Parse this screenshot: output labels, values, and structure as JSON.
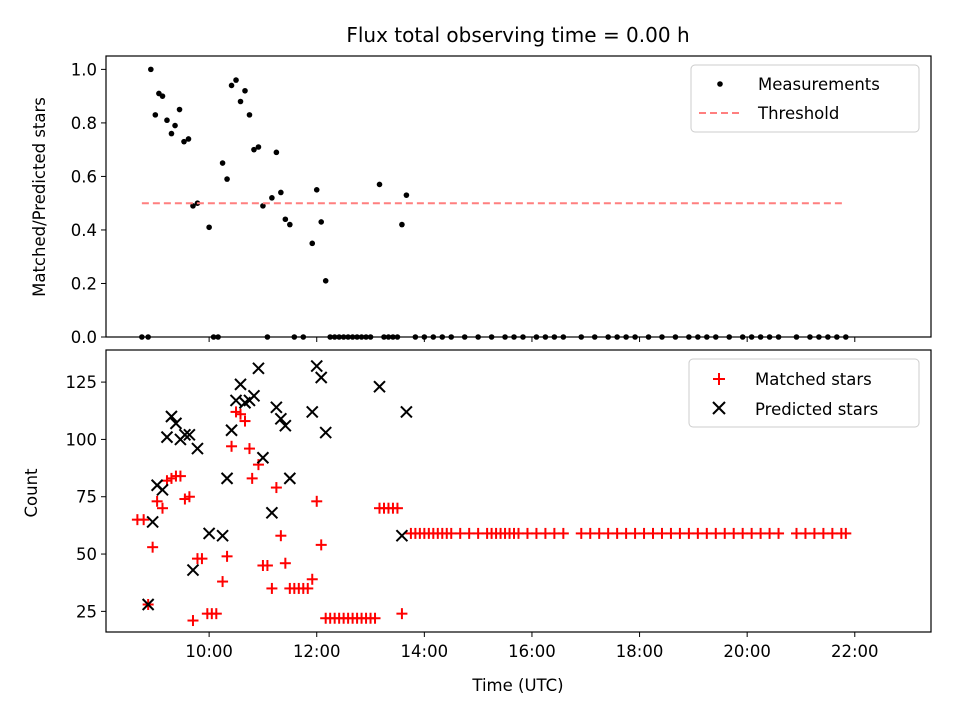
{
  "figure": {
    "title": "Flux total observing time = 0.00 h"
  },
  "chart_data": [
    {
      "type": "scatter",
      "ylabel": "Matched/Predicted stars",
      "xlabel": "",
      "xlim": [
        "08:05",
        "23:25"
      ],
      "ylim": [
        0,
        1.05
      ],
      "yticks": [
        0.0,
        0.2,
        0.4,
        0.6,
        0.8,
        1.0
      ],
      "ytick_labels": [
        "0.0",
        "0.2",
        "0.4",
        "0.6",
        "0.8",
        "1.0"
      ],
      "xticks": [
        "10:00",
        "12:00",
        "14:00",
        "16:00",
        "18:00",
        "20:00",
        "22:00"
      ],
      "show_xtick_labels": false,
      "legend_position": "top-right",
      "series": [
        {
          "name": "Measurements",
          "color": "#000000",
          "marker": "dot",
          "points": [
            [
              "08:45",
              0
            ],
            [
              "08:52",
              0
            ],
            [
              "08:55",
              1.0
            ],
            [
              "09:00",
              0.83
            ],
            [
              "09:04",
              0.91
            ],
            [
              "09:08",
              0.9
            ],
            [
              "09:13",
              0.81
            ],
            [
              "09:18",
              0.76
            ],
            [
              "09:22",
              0.79
            ],
            [
              "09:27",
              0.85
            ],
            [
              "09:32",
              0.73
            ],
            [
              "09:37",
              0.74
            ],
            [
              "09:42",
              0.49
            ],
            [
              "09:47",
              0.5
            ],
            [
              "10:00",
              0.41
            ],
            [
              "10:05",
              0
            ],
            [
              "10:10",
              0
            ],
            [
              "10:15",
              0.65
            ],
            [
              "10:20",
              0.59
            ],
            [
              "10:25",
              0.94
            ],
            [
              "10:30",
              0.96
            ],
            [
              "10:35",
              0.88
            ],
            [
              "10:40",
              0.92
            ],
            [
              "10:45",
              0.83
            ],
            [
              "10:50",
              0.7
            ],
            [
              "10:55",
              0.71
            ],
            [
              "11:00",
              0.49
            ],
            [
              "11:05",
              0
            ],
            [
              "11:10",
              0.52
            ],
            [
              "11:15",
              0.69
            ],
            [
              "11:20",
              0.54
            ],
            [
              "11:25",
              0.44
            ],
            [
              "11:30",
              0.42
            ],
            [
              "11:35",
              0
            ],
            [
              "11:45",
              0
            ],
            [
              "11:55",
              0.35
            ],
            [
              "12:00",
              0.55
            ],
            [
              "12:05",
              0.43
            ],
            [
              "12:10",
              0.21
            ],
            [
              "12:15",
              0
            ],
            [
              "12:20",
              0
            ],
            [
              "12:25",
              0
            ],
            [
              "12:30",
              0
            ],
            [
              "12:35",
              0
            ],
            [
              "12:40",
              0
            ],
            [
              "12:45",
              0
            ],
            [
              "12:50",
              0
            ],
            [
              "12:55",
              0
            ],
            [
              "13:00",
              0
            ],
            [
              "13:10",
              0.57
            ],
            [
              "13:15",
              0
            ],
            [
              "13:20",
              0
            ],
            [
              "13:25",
              0
            ],
            [
              "13:30",
              0
            ],
            [
              "13:35",
              0.42
            ],
            [
              "13:40",
              0.53
            ],
            [
              "13:50",
              0
            ],
            [
              "14:00",
              0
            ],
            [
              "14:10",
              0
            ],
            [
              "14:20",
              0
            ],
            [
              "14:30",
              0
            ],
            [
              "14:45",
              0
            ],
            [
              "15:00",
              0
            ],
            [
              "15:15",
              0
            ],
            [
              "15:30",
              0
            ],
            [
              "15:40",
              0
            ],
            [
              "15:50",
              0
            ],
            [
              "16:05",
              0
            ],
            [
              "16:15",
              0
            ],
            [
              "16:25",
              0
            ],
            [
              "16:35",
              0
            ],
            [
              "16:55",
              0
            ],
            [
              "17:10",
              0
            ],
            [
              "17:25",
              0
            ],
            [
              "17:35",
              0
            ],
            [
              "17:45",
              0
            ],
            [
              "17:55",
              0
            ],
            [
              "18:10",
              0
            ],
            [
              "18:25",
              0
            ],
            [
              "18:40",
              0
            ],
            [
              "18:55",
              0
            ],
            [
              "19:05",
              0
            ],
            [
              "19:15",
              0
            ],
            [
              "19:25",
              0
            ],
            [
              "19:40",
              0
            ],
            [
              "19:55",
              0
            ],
            [
              "20:05",
              0
            ],
            [
              "20:15",
              0
            ],
            [
              "20:25",
              0
            ],
            [
              "20:35",
              0
            ],
            [
              "20:55",
              0
            ],
            [
              "21:10",
              0
            ],
            [
              "21:20",
              0
            ],
            [
              "21:30",
              0
            ],
            [
              "21:40",
              0
            ],
            [
              "21:50",
              0
            ]
          ]
        },
        {
          "name": "Threshold",
          "color": "#ff7f7f",
          "style": "dashed-line",
          "points": [
            [
              "08:45",
              0.5
            ],
            [
              "21:50",
              0.5
            ]
          ]
        }
      ]
    },
    {
      "type": "scatter",
      "ylabel": "Count",
      "xlabel": "Time (UTC)",
      "xlim": [
        "08:05",
        "23:25"
      ],
      "ylim": [
        16,
        139
      ],
      "yticks": [
        25,
        50,
        75,
        100,
        125
      ],
      "ytick_labels": [
        "25",
        "50",
        "75",
        "100",
        "125"
      ],
      "xticks": [
        "10:00",
        "12:00",
        "14:00",
        "16:00",
        "18:00",
        "20:00",
        "22:00"
      ],
      "xtick_labels": [
        "10:00",
        "12:00",
        "14:00",
        "16:00",
        "18:00",
        "20:00",
        "22:00"
      ],
      "show_xtick_labels": true,
      "legend_position": "top-right",
      "series": [
        {
          "name": "Matched stars",
          "color": "#ff0000",
          "marker": "plus",
          "points": [
            [
              "08:40",
              65
            ],
            [
              "08:47",
              65
            ],
            [
              "08:52",
              28
            ],
            [
              "08:57",
              53
            ],
            [
              "09:02",
              73
            ],
            [
              "09:08",
              70
            ],
            [
              "09:13",
              82
            ],
            [
              "09:18",
              83
            ],
            [
              "09:23",
              84
            ],
            [
              "09:28",
              84
            ],
            [
              "09:33",
              74
            ],
            [
              "09:38",
              75
            ],
            [
              "09:42",
              21
            ],
            [
              "09:47",
              48
            ],
            [
              "09:52",
              48
            ],
            [
              "09:58",
              24
            ],
            [
              "10:03",
              24
            ],
            [
              "10:08",
              24
            ],
            [
              "10:15",
              38
            ],
            [
              "10:20",
              49
            ],
            [
              "10:25",
              97
            ],
            [
              "10:30",
              112
            ],
            [
              "10:35",
              111
            ],
            [
              "10:40",
              108
            ],
            [
              "10:45",
              96
            ],
            [
              "10:48",
              83
            ],
            [
              "10:55",
              89
            ],
            [
              "11:00",
              45
            ],
            [
              "11:05",
              45
            ],
            [
              "11:10",
              35
            ],
            [
              "11:15",
              79
            ],
            [
              "11:20",
              58
            ],
            [
              "11:25",
              46
            ],
            [
              "11:30",
              35
            ],
            [
              "11:35",
              35
            ],
            [
              "11:40",
              35
            ],
            [
              "11:45",
              35
            ],
            [
              "11:50",
              35
            ],
            [
              "11:55",
              39
            ],
            [
              "12:00",
              73
            ],
            [
              "12:05",
              54
            ],
            [
              "12:10",
              22
            ],
            [
              "12:15",
              22
            ],
            [
              "12:20",
              22
            ],
            [
              "12:25",
              22
            ],
            [
              "12:30",
              22
            ],
            [
              "12:35",
              22
            ],
            [
              "12:40",
              22
            ],
            [
              "12:45",
              22
            ],
            [
              "12:50",
              22
            ],
            [
              "12:55",
              22
            ],
            [
              "13:00",
              22
            ],
            [
              "13:05",
              22
            ],
            [
              "13:10",
              70
            ],
            [
              "13:15",
              70
            ],
            [
              "13:20",
              70
            ],
            [
              "13:25",
              70
            ],
            [
              "13:30",
              70
            ],
            [
              "13:35",
              24
            ],
            [
              "13:45",
              59
            ],
            [
              "13:50",
              59
            ],
            [
              "13:55",
              59
            ],
            [
              "14:00",
              59
            ],
            [
              "14:05",
              59
            ],
            [
              "14:10",
              59
            ],
            [
              "14:15",
              59
            ],
            [
              "14:20",
              59
            ],
            [
              "14:25",
              59
            ],
            [
              "14:30",
              59
            ],
            [
              "14:40",
              59
            ],
            [
              "14:50",
              59
            ],
            [
              "15:00",
              59
            ],
            [
              "15:10",
              59
            ],
            [
              "15:15",
              59
            ],
            [
              "15:20",
              59
            ],
            [
              "15:25",
              59
            ],
            [
              "15:30",
              59
            ],
            [
              "15:35",
              59
            ],
            [
              "15:40",
              59
            ],
            [
              "15:45",
              59
            ],
            [
              "15:55",
              59
            ],
            [
              "16:05",
              59
            ],
            [
              "16:15",
              59
            ],
            [
              "16:25",
              59
            ],
            [
              "16:35",
              59
            ],
            [
              "16:55",
              59
            ],
            [
              "17:05",
              59
            ],
            [
              "17:15",
              59
            ],
            [
              "17:25",
              59
            ],
            [
              "17:35",
              59
            ],
            [
              "17:45",
              59
            ],
            [
              "17:55",
              59
            ],
            [
              "18:05",
              59
            ],
            [
              "18:15",
              59
            ],
            [
              "18:25",
              59
            ],
            [
              "18:35",
              59
            ],
            [
              "18:45",
              59
            ],
            [
              "18:55",
              59
            ],
            [
              "19:05",
              59
            ],
            [
              "19:15",
              59
            ],
            [
              "19:25",
              59
            ],
            [
              "19:35",
              59
            ],
            [
              "19:45",
              59
            ],
            [
              "19:55",
              59
            ],
            [
              "20:05",
              59
            ],
            [
              "20:15",
              59
            ],
            [
              "20:25",
              59
            ],
            [
              "20:35",
              59
            ],
            [
              "20:55",
              59
            ],
            [
              "21:05",
              59
            ],
            [
              "21:15",
              59
            ],
            [
              "21:25",
              59
            ],
            [
              "21:35",
              59
            ],
            [
              "21:45",
              59
            ],
            [
              "21:50",
              59
            ]
          ]
        },
        {
          "name": "Predicted stars",
          "color": "#000000",
          "marker": "cross",
          "points": [
            [
              "08:52",
              28
            ],
            [
              "08:57",
              64
            ],
            [
              "09:02",
              80
            ],
            [
              "09:08",
              78
            ],
            [
              "09:13",
              101
            ],
            [
              "09:18",
              110
            ],
            [
              "09:23",
              107
            ],
            [
              "09:28",
              100
            ],
            [
              "09:33",
              102
            ],
            [
              "09:38",
              102
            ],
            [
              "09:42",
              43
            ],
            [
              "09:47",
              96
            ],
            [
              "10:00",
              59
            ],
            [
              "10:15",
              58
            ],
            [
              "10:20",
              83
            ],
            [
              "10:25",
              104
            ],
            [
              "10:30",
              117
            ],
            [
              "10:35",
              124
            ],
            [
              "10:40",
              116
            ],
            [
              "10:45",
              117
            ],
            [
              "10:50",
              119
            ],
            [
              "10:55",
              131
            ],
            [
              "11:00",
              92
            ],
            [
              "11:10",
              68
            ],
            [
              "11:15",
              114
            ],
            [
              "11:20",
              109
            ],
            [
              "11:25",
              106
            ],
            [
              "11:30",
              83
            ],
            [
              "11:55",
              112
            ],
            [
              "12:00",
              132
            ],
            [
              "12:05",
              127
            ],
            [
              "12:10",
              103
            ],
            [
              "13:10",
              123
            ],
            [
              "13:35",
              58
            ],
            [
              "13:40",
              112
            ]
          ]
        }
      ]
    }
  ]
}
